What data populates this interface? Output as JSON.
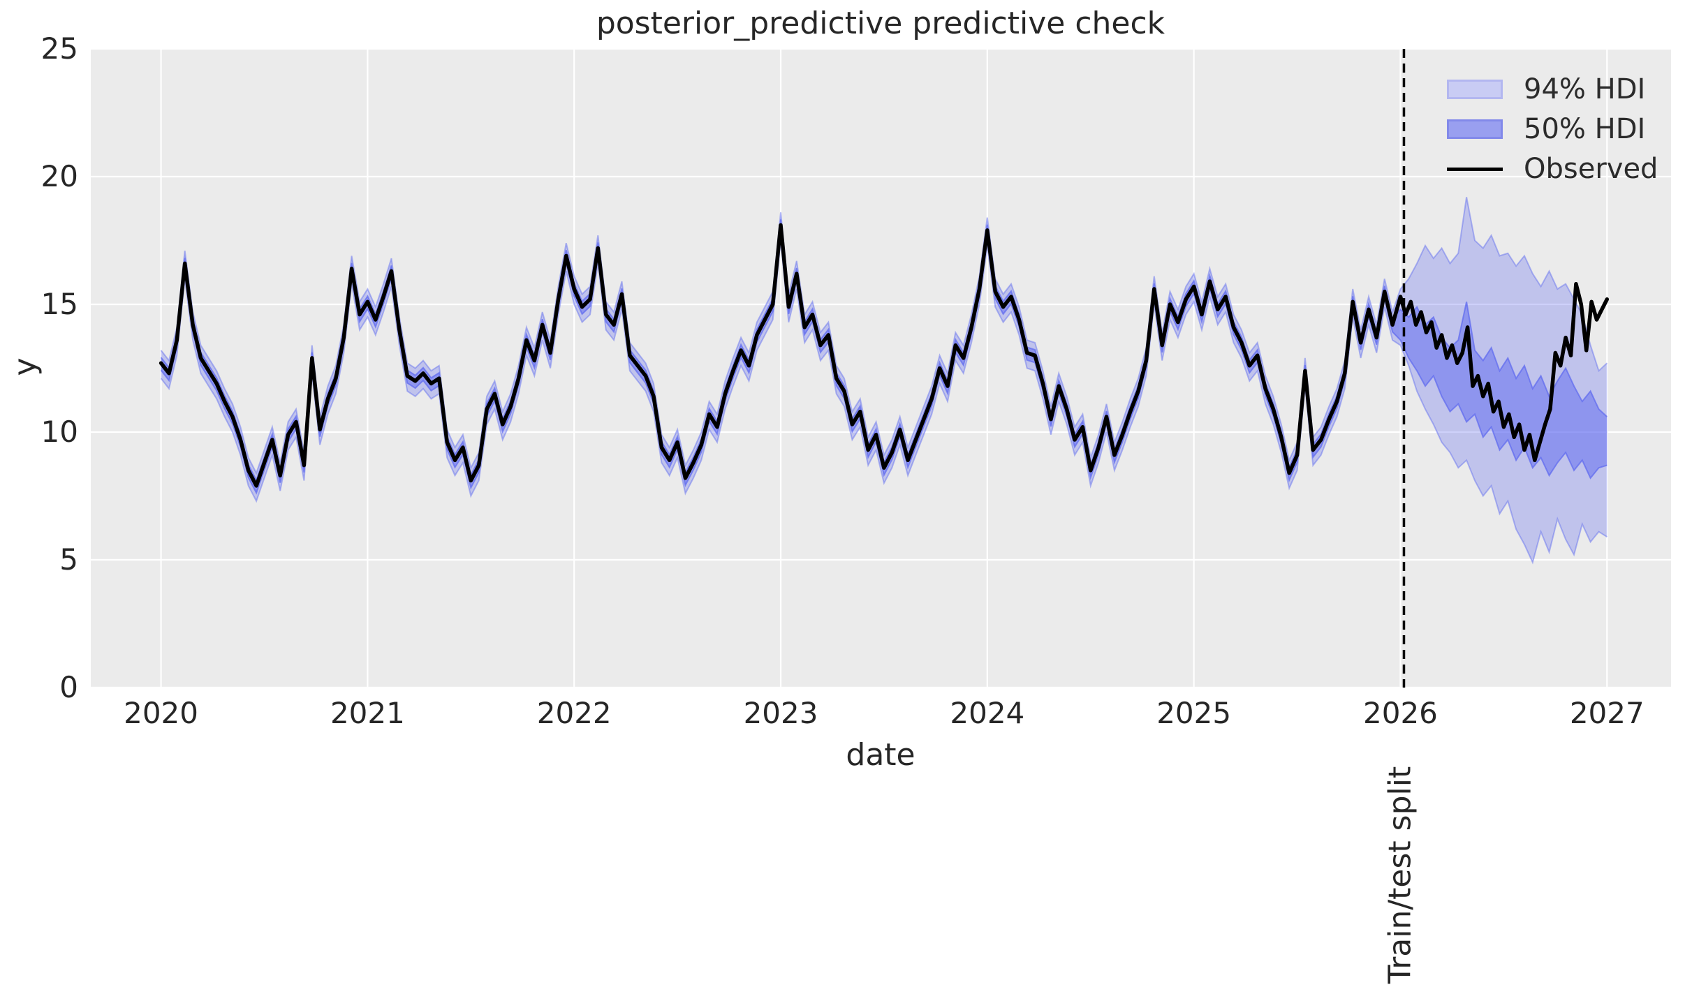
{
  "title": "posterior_predictive predictive check",
  "axes": {
    "xlabel": "date",
    "ylabel": "y"
  },
  "legend": {
    "position": "upper right",
    "entries": [
      {
        "label": "94% HDI",
        "swatch": "band-light"
      },
      {
        "label": "50% HDI",
        "swatch": "band-dark"
      },
      {
        "label": "Observed",
        "swatch": "line"
      }
    ]
  },
  "split_marker": {
    "label": "Train/test split",
    "x": 2026.0
  },
  "colors": {
    "figure_bg": "#ffffff",
    "axes_bg": "#ebebeb",
    "grid": "#ffffff",
    "text": "#262626",
    "band_base": "#5c68ef",
    "band_light_alpha": 0.3,
    "band_dark_alpha": 0.5,
    "legend_band_light_fill": "#c9ccf4",
    "legend_band_light_edge": "#b3b7f0",
    "legend_band_dark_fill": "#999ff0",
    "legend_band_dark_edge": "#8289ea",
    "observed": "#000000",
    "split_line": "#000000"
  },
  "chart_data": {
    "type": "line",
    "title": "posterior_predictive predictive check",
    "xlabel": "date",
    "ylabel": "y",
    "xlim": [
      2019.66,
      2027.31
    ],
    "ylim": [
      0,
      25
    ],
    "x_ticks": [
      2020,
      2021,
      2022,
      2023,
      2024,
      2025,
      2026,
      2027
    ],
    "y_ticks": [
      0,
      5,
      10,
      15,
      20,
      25
    ],
    "grid": true,
    "series": [
      {
        "name": "Observed",
        "type": "line",
        "color": "#000000"
      },
      {
        "name": "94% HDI",
        "type": "band"
      },
      {
        "name": "50% HDI",
        "type": "band"
      }
    ],
    "observed_train": {
      "x_start": 2020.0,
      "x_step": 0.0384615,
      "y": [
        12.7,
        12.3,
        13.6,
        16.6,
        14.2,
        12.9,
        12.4,
        11.9,
        11.2,
        10.6,
        9.7,
        8.5,
        7.9,
        8.8,
        9.7,
        8.3,
        9.9,
        10.4,
        8.7,
        12.9,
        10.1,
        11.3,
        12.1,
        13.7,
        16.4,
        14.6,
        15.1,
        14.4,
        15.3,
        16.3,
        14.0,
        12.2,
        12.0,
        12.3,
        11.9,
        12.1,
        9.6,
        8.9,
        9.4,
        8.1,
        8.7,
        10.9,
        11.5,
        10.3,
        11.0,
        12.1,
        13.6,
        12.8,
        14.2,
        13.1,
        15.2,
        16.9,
        15.6,
        14.9,
        15.2,
        17.2,
        14.6,
        14.2,
        15.4,
        13.0,
        12.6,
        12.2,
        11.4,
        9.4,
        8.9,
        9.6,
        8.2,
        8.8,
        9.5,
        10.7,
        10.2,
        11.5,
        12.4,
        13.2,
        12.6,
        13.8,
        14.4,
        15.0,
        18.1,
        14.9,
        16.2,
        14.1,
        14.6,
        13.4,
        13.8,
        12.1,
        11.6,
        10.3,
        10.8,
        9.3,
        9.9,
        8.6,
        9.2,
        10.1,
        8.9,
        9.7,
        10.5,
        11.3,
        12.5,
        11.8,
        13.4,
        12.9,
        14.1,
        15.6,
        17.9,
        15.5,
        14.9,
        15.3,
        14.4,
        13.1,
        13.0,
        11.9,
        10.5,
        11.8,
        10.9,
        9.7,
        10.2,
        8.5,
        9.4,
        10.6,
        9.1,
        9.9,
        10.8,
        11.6,
        12.8,
        15.6,
        13.4,
        15.0,
        14.3,
        15.2,
        15.7,
        14.6,
        15.9,
        14.8,
        15.3,
        14.1,
        13.5,
        12.6,
        13.0,
        11.7,
        10.9,
        9.8,
        8.4,
        9.1,
        12.4,
        9.3,
        9.7,
        10.5,
        11.2,
        12.3,
        15.1,
        13.5,
        14.8,
        13.7,
        15.5,
        14.2
      ]
    },
    "observed_test": {
      "x_start": 2026.0,
      "x_step": 0.025,
      "y": [
        15.3,
        14.6,
        15.1,
        14.2,
        14.7,
        13.9,
        14.3,
        13.3,
        13.8,
        12.9,
        13.4,
        12.7,
        13.1,
        14.1,
        11.8,
        12.2,
        11.4,
        11.9,
        10.8,
        11.2,
        10.2,
        10.7,
        9.8,
        10.3,
        9.3,
        9.9,
        8.9,
        9.6,
        10.3,
        10.9,
        13.1,
        12.6,
        13.7,
        13.0,
        15.8,
        15.0,
        13.2,
        15.1,
        14.4,
        14.8,
        15.2
      ]
    },
    "train_bands": {
      "note": "bands hug the observed line in the training region",
      "hdi94_upper_offset": 0.5,
      "hdi94_lower_offset": 0.6,
      "hdi50_upper_offset": 0.22,
      "hdi50_lower_offset": 0.28
    },
    "test_bands": {
      "x_start": 2026.0,
      "x_step": 0.04,
      "hdi94_hi": [
        15.6,
        16.0,
        16.6,
        17.3,
        16.8,
        17.2,
        16.6,
        17.0,
        19.2,
        17.5,
        17.2,
        17.7,
        16.9,
        17.0,
        16.5,
        16.9,
        16.2,
        15.7,
        16.3,
        15.6,
        15.8,
        15.2,
        14.6,
        13.4,
        12.4,
        12.7
      ],
      "hdi94_lo": [
        13.4,
        12.6,
        11.6,
        10.9,
        10.3,
        9.6,
        9.2,
        8.6,
        8.9,
        8.1,
        7.5,
        7.9,
        6.8,
        7.3,
        6.2,
        5.6,
        4.9,
        6.1,
        5.3,
        6.6,
        5.8,
        5.2,
        6.4,
        5.7,
        6.1,
        5.9
      ],
      "hdi50_hi": [
        14.8,
        14.5,
        14.9,
        14.2,
        14.5,
        13.7,
        13.3,
        13.6,
        15.1,
        13.2,
        12.8,
        13.3,
        12.4,
        12.9,
        12.1,
        12.6,
        11.7,
        12.2,
        11.4,
        12.0,
        12.5,
        11.8,
        11.2,
        11.6,
        10.9,
        10.6
      ],
      "hdi50_lo": [
        13.6,
        12.9,
        12.4,
        11.8,
        12.2,
        11.4,
        10.8,
        11.1,
        10.4,
        10.7,
        9.8,
        10.2,
        9.3,
        9.7,
        8.9,
        9.4,
        8.6,
        9.0,
        8.3,
        8.8,
        9.2,
        8.5,
        8.9,
        8.2,
        8.6,
        8.7
      ]
    }
  }
}
